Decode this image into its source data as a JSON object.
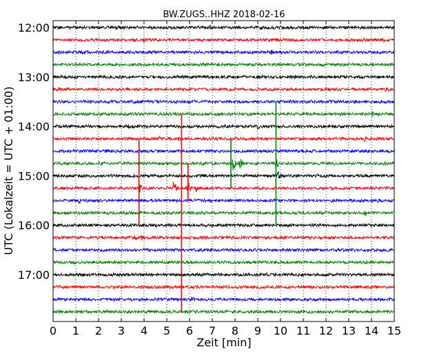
{
  "chart_data": {
    "type": "line",
    "title": "BW.ZUGS..HHZ 2018-02-16",
    "xlabel": "Zeit  [min]",
    "ylabel": "UTC (Lokalzeit = UTC + 01:00)",
    "xlim": [
      0,
      15
    ],
    "x_ticks": [
      "0",
      "1",
      "2",
      "3",
      "4",
      "5",
      "6",
      "7",
      "8",
      "9",
      "10",
      "11",
      "12",
      "13",
      "14",
      "15"
    ],
    "y_ticks": [
      "12:00",
      "13:00",
      "14:00",
      "15:00",
      "16:00",
      "17:00"
    ],
    "grid": true,
    "trace_interval_min": 15,
    "trace_colors": [
      "#000000",
      "#ff0000",
      "#0000ff",
      "#008000"
    ],
    "traces": [
      {
        "start": "12:00",
        "events": [
          [
            3.5,
            2
          ],
          [
            6.9,
            4
          ],
          [
            9.1,
            4
          ],
          [
            10.7,
            3
          ]
        ]
      },
      {
        "start": "12:15",
        "events": [
          [
            4.0,
            6
          ],
          [
            5.1,
            3
          ],
          [
            8.8,
            2
          ],
          [
            14.5,
            5
          ]
        ]
      },
      {
        "start": "12:30",
        "events": [
          [
            1.5,
            3
          ],
          [
            3.3,
            3
          ],
          [
            9.6,
            5
          ]
        ]
      },
      {
        "start": "12:45",
        "events": [
          [
            0.3,
            2
          ],
          [
            13.0,
            2
          ],
          [
            14.7,
            6
          ]
        ]
      },
      {
        "start": "13:00",
        "events": [
          [
            2.6,
            2
          ],
          [
            9.0,
            3
          ],
          [
            10.6,
            5
          ]
        ]
      },
      {
        "start": "13:15",
        "events": [
          [
            2.0,
            2
          ],
          [
            5.0,
            3
          ],
          [
            14.6,
            4
          ]
        ]
      },
      {
        "start": "13:30",
        "events": [
          [
            6.2,
            2
          ],
          [
            9.3,
            3
          ]
        ]
      },
      {
        "start": "13:45",
        "events": [
          [
            3.8,
            3
          ],
          [
            14.0,
            7
          ]
        ]
      },
      {
        "start": "14:00",
        "events": [
          [
            3.3,
            4
          ],
          [
            9.0,
            5
          ],
          [
            12.4,
            3
          ]
        ]
      },
      {
        "start": "14:15",
        "events": [
          [
            4.7,
            5
          ],
          [
            13.7,
            5
          ]
        ]
      },
      {
        "start": "14:30",
        "events": [
          [
            2.0,
            2
          ],
          [
            8.4,
            2
          ]
        ]
      },
      {
        "start": "14:45",
        "events": [
          [
            5.3,
            4
          ],
          [
            7.9,
            14
          ],
          [
            8.2,
            10
          ],
          [
            9.8,
            10
          ],
          [
            14.6,
            4
          ]
        ]
      },
      {
        "start": "15:00",
        "events": [
          [
            3.1,
            3
          ],
          [
            5.5,
            3
          ],
          [
            9.9,
            9
          ],
          [
            12.0,
            3
          ]
        ]
      },
      {
        "start": "15:15",
        "events": [
          [
            3.8,
            10
          ],
          [
            4.2,
            5
          ],
          [
            5.3,
            12
          ],
          [
            5.9,
            14
          ],
          [
            6.3,
            6
          ]
        ]
      },
      {
        "start": "15:30",
        "events": [
          [
            1.1,
            7
          ],
          [
            8.5,
            3
          ],
          [
            13.1,
            4
          ],
          [
            14.3,
            5
          ]
        ]
      },
      {
        "start": "15:45",
        "events": [
          [
            11.4,
            4
          ],
          [
            13.7,
            6
          ]
        ]
      },
      {
        "start": "16:00",
        "events": [
          [
            3.4,
            3
          ],
          [
            14.6,
            5
          ]
        ]
      },
      {
        "start": "16:15",
        "events": [
          [
            3.6,
            6
          ],
          [
            3.9,
            5
          ],
          [
            7.3,
            3
          ]
        ]
      },
      {
        "start": "16:30",
        "events": []
      },
      {
        "start": "16:45",
        "events": []
      },
      {
        "start": "17:00",
        "events": []
      },
      {
        "start": "17:15",
        "events": []
      },
      {
        "start": "17:30",
        "events": [
          [
            6.1,
            7
          ]
        ]
      },
      {
        "start": "17:45",
        "events": [
          [
            5.5,
            3
          ]
        ]
      }
    ],
    "spikes": [
      {
        "x": 3.78,
        "from": "14:15",
        "to": "16:00",
        "color": "#ff0000"
      },
      {
        "x": 5.65,
        "from": "13:45",
        "to": "17:45",
        "color": "#ff0000"
      },
      {
        "x": 5.93,
        "from": "14:45",
        "to": "15:30",
        "color": "#ff0000"
      },
      {
        "x": 7.82,
        "from": "14:15",
        "to": "15:15",
        "color": "#008000"
      },
      {
        "x": 9.8,
        "from": "13:30",
        "to": "16:00",
        "color": "#008000"
      }
    ]
  }
}
